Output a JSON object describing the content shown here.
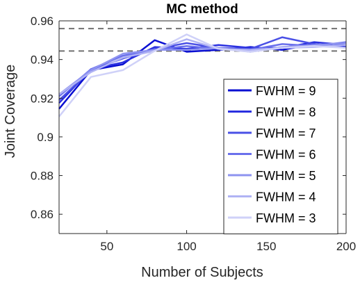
{
  "chart_data": {
    "type": "line",
    "title": "MC method",
    "xlabel": "Number of Subjects",
    "ylabel": "Joint Coverage",
    "xlim": [
      20,
      200
    ],
    "ylim": [
      0.85,
      0.96
    ],
    "xticks": [
      50,
      100,
      150,
      200
    ],
    "yticks": [
      0.86,
      0.88,
      0.9,
      0.92,
      0.94,
      0.96
    ],
    "x": [
      20,
      40,
      60,
      80,
      100,
      120,
      140,
      160,
      180,
      200
    ],
    "reference_lines": [
      0.956,
      0.9444
    ],
    "legend_position": "bottom-right",
    "grid": false,
    "series": [
      {
        "name": "FWHM = 9",
        "color": "#0a0fd2",
        "values": [
          0.9145,
          0.9345,
          0.9375,
          0.95,
          0.944,
          0.945,
          0.9465,
          0.945,
          0.948,
          0.9465
        ]
      },
      {
        "name": "FWHM = 8",
        "color": "#2a30e0",
        "values": [
          0.9175,
          0.935,
          0.9385,
          0.9465,
          0.9455,
          0.9475,
          0.946,
          0.946,
          0.949,
          0.9475
        ]
      },
      {
        "name": "FWHM = 7",
        "color": "#4a50e6",
        "values": [
          0.919,
          0.9345,
          0.9405,
          0.9455,
          0.9485,
          0.946,
          0.9455,
          0.9515,
          0.948,
          0.946
        ]
      },
      {
        "name": "FWHM = 6",
        "color": "#6a70ec",
        "values": [
          0.921,
          0.935,
          0.942,
          0.945,
          0.947,
          0.9455,
          0.945,
          0.948,
          0.947,
          0.949
        ]
      },
      {
        "name": "FWHM = 5",
        "color": "#8e93f0",
        "values": [
          0.922,
          0.9345,
          0.943,
          0.945,
          0.945,
          0.946,
          0.944,
          0.9465,
          0.9475,
          0.9485
        ]
      },
      {
        "name": "FWHM = 4",
        "color": "#b0b3f4",
        "values": [
          0.922,
          0.9335,
          0.941,
          0.9445,
          0.9505,
          0.9455,
          0.945,
          0.946,
          0.9465,
          0.9475
        ]
      },
      {
        "name": "FWHM = 3",
        "color": "#cfd1f8",
        "values": [
          0.9105,
          0.931,
          0.9345,
          0.9445,
          0.953,
          0.9455,
          0.944,
          0.946,
          0.947,
          0.946
        ]
      }
    ]
  }
}
